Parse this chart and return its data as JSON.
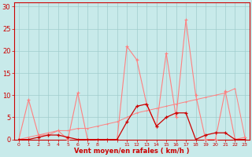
{
  "bg_color": "#c8eaea",
  "line_color_light": "#ff8080",
  "line_color_dark": "#cc0000",
  "grid_color": "#a0cccc",
  "xlabel": "Vent moyen/en rafales ( km/h )",
  "xlabel_color": "#cc0000",
  "yticks": [
    0,
    5,
    10,
    15,
    20,
    25,
    30
  ],
  "ylim": [
    0,
    31
  ],
  "x_seq": [
    0,
    1,
    2,
    3,
    4,
    5,
    6,
    7,
    8,
    9,
    10,
    11,
    12,
    13,
    14,
    15,
    16,
    17,
    18,
    19,
    20,
    21,
    22,
    23
  ],
  "x_tick_labels": [
    "0",
    "1",
    "2",
    "3",
    "4",
    "5",
    "6",
    "7",
    "8",
    "",
    "",
    "11",
    "12",
    "13",
    "14",
    "15",
    "16",
    "17",
    "18",
    "19",
    "20",
    "21",
    "22",
    "23"
  ],
  "rafales_y": [
    0,
    9,
    1,
    1,
    2,
    0,
    10.5,
    0,
    0,
    0,
    0,
    21,
    18,
    8,
    3,
    19.5,
    5,
    27,
    10,
    0,
    0,
    11,
    0,
    0.5
  ],
  "moyen_y": [
    0,
    0,
    0.5,
    1,
    1,
    0.5,
    0,
    0,
    0,
    0,
    0,
    4,
    7.5,
    8,
    3,
    5,
    6,
    6,
    0,
    1,
    1.5,
    1.5,
    0,
    0
  ],
  "trend_y": [
    0,
    0.5,
    1,
    1.5,
    2,
    2,
    2.5,
    2.5,
    3,
    3.5,
    4,
    5,
    6,
    6.5,
    7,
    7.5,
    8,
    8.5,
    9,
    9.5,
    10,
    10.5,
    11.5,
    0.5
  ]
}
